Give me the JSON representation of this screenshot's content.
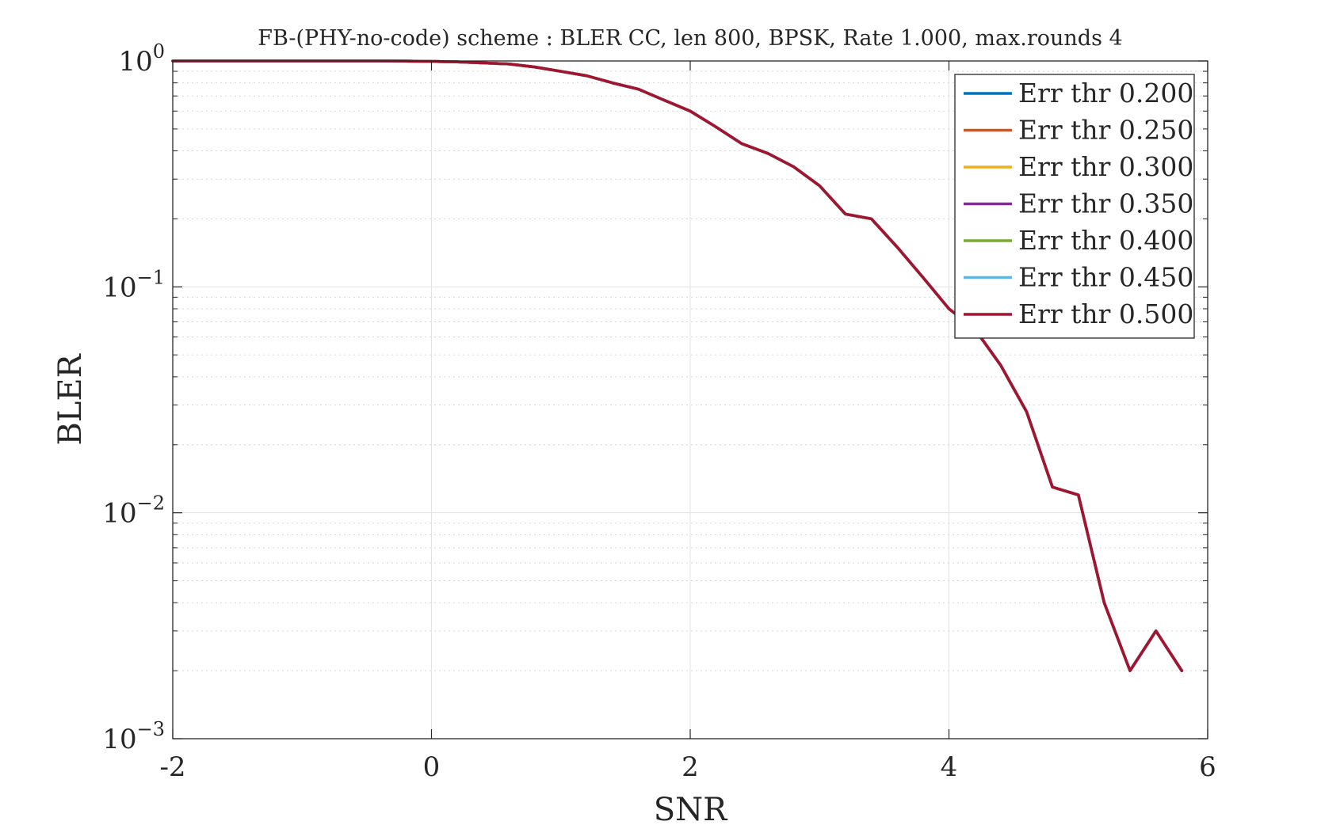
{
  "chart_data": {
    "type": "line",
    "title": "FB-(PHY-no-code) scheme : BLER CC, len 800, BPSK, Rate 1.000, max.rounds 4",
    "xlabel": "SNR",
    "ylabel": "BLER",
    "xlim": [
      -2,
      6
    ],
    "ylim": [
      0.001,
      1
    ],
    "yscale": "log",
    "grid": true,
    "minor_grid_y": true,
    "legend_position": "top-right",
    "x_ticks": [
      "-2",
      "0",
      "2",
      "4",
      "6"
    ],
    "y_ticks": [
      {
        "base": "10",
        "exp": "0"
      },
      {
        "base": "10",
        "exp": "−1"
      },
      {
        "base": "10",
        "exp": "−2"
      },
      {
        "base": "10",
        "exp": "−3"
      }
    ],
    "x": [
      -2,
      -1.8,
      -1.6,
      -1.4,
      -1.2,
      -1,
      -0.8,
      -0.6,
      -0.4,
      -0.2,
      0,
      0.2,
      0.4,
      0.6,
      0.8,
      1,
      1.2,
      1.4,
      1.6,
      1.8,
      2,
      2.2,
      2.4,
      2.6,
      2.8,
      3,
      3.2,
      3.4,
      3.6,
      3.8,
      4,
      4.2,
      4.4,
      4.6,
      4.8,
      5,
      5.2,
      5.4,
      5.6,
      5.8
    ],
    "series": [
      {
        "name": "Err thr 0.200",
        "color": "#0072BD",
        "values": [
          1,
          1,
          1,
          1,
          1,
          1,
          1,
          1,
          1,
          0.998,
          0.995,
          0.99,
          0.98,
          0.97,
          0.94,
          0.9,
          0.86,
          0.8,
          0.75,
          0.67,
          0.6,
          0.51,
          0.43,
          0.39,
          0.34,
          0.28,
          0.21,
          0.2,
          0.15,
          0.11,
          0.08,
          0.065,
          0.045,
          0.028,
          0.013,
          0.012,
          0.004,
          0.002,
          0.003,
          0.002
        ]
      },
      {
        "name": "Err thr 0.250",
        "color": "#D95319",
        "values": [
          1,
          1,
          1,
          1,
          1,
          1,
          1,
          1,
          1,
          0.998,
          0.995,
          0.99,
          0.98,
          0.97,
          0.94,
          0.9,
          0.86,
          0.8,
          0.75,
          0.67,
          0.6,
          0.51,
          0.43,
          0.39,
          0.34,
          0.28,
          0.21,
          0.2,
          0.15,
          0.11,
          0.08,
          0.065,
          0.045,
          0.028,
          0.013,
          0.012,
          0.004,
          0.002,
          0.003,
          0.002
        ]
      },
      {
        "name": "Err thr 0.300",
        "color": "#EDB120",
        "values": [
          1,
          1,
          1,
          1,
          1,
          1,
          1,
          1,
          1,
          0.998,
          0.995,
          0.99,
          0.98,
          0.97,
          0.94,
          0.9,
          0.86,
          0.8,
          0.75,
          0.67,
          0.6,
          0.51,
          0.43,
          0.39,
          0.34,
          0.28,
          0.21,
          0.2,
          0.15,
          0.11,
          0.08,
          0.065,
          0.045,
          0.028,
          0.013,
          0.012,
          0.004,
          0.002,
          0.003,
          0.002
        ]
      },
      {
        "name": "Err thr 0.350",
        "color": "#7E2F8E",
        "values": [
          1,
          1,
          1,
          1,
          1,
          1,
          1,
          1,
          1,
          0.998,
          0.995,
          0.99,
          0.98,
          0.97,
          0.94,
          0.9,
          0.86,
          0.8,
          0.75,
          0.67,
          0.6,
          0.51,
          0.43,
          0.39,
          0.34,
          0.28,
          0.21,
          0.2,
          0.15,
          0.11,
          0.08,
          0.065,
          0.045,
          0.028,
          0.013,
          0.012,
          0.004,
          0.002,
          0.003,
          0.002
        ]
      },
      {
        "name": "Err thr 0.400",
        "color": "#77AC30",
        "values": [
          1,
          1,
          1,
          1,
          1,
          1,
          1,
          1,
          1,
          0.998,
          0.995,
          0.99,
          0.98,
          0.97,
          0.94,
          0.9,
          0.86,
          0.8,
          0.75,
          0.67,
          0.6,
          0.51,
          0.43,
          0.39,
          0.34,
          0.28,
          0.21,
          0.2,
          0.15,
          0.11,
          0.08,
          0.065,
          0.045,
          0.028,
          0.013,
          0.012,
          0.004,
          0.002,
          0.003,
          0.002
        ]
      },
      {
        "name": "Err thr 0.450",
        "color": "#4DBEEE",
        "values": [
          1,
          1,
          1,
          1,
          1,
          1,
          1,
          1,
          1,
          0.998,
          0.995,
          0.99,
          0.98,
          0.97,
          0.94,
          0.9,
          0.86,
          0.8,
          0.75,
          0.67,
          0.6,
          0.51,
          0.43,
          0.39,
          0.34,
          0.28,
          0.21,
          0.2,
          0.15,
          0.11,
          0.08,
          0.065,
          0.045,
          0.028,
          0.013,
          0.012,
          0.004,
          0.002,
          0.003,
          0.002
        ]
      },
      {
        "name": "Err thr 0.500",
        "color": "#A2142F",
        "values": [
          1,
          1,
          1,
          1,
          1,
          1,
          1,
          1,
          1,
          0.998,
          0.995,
          0.99,
          0.98,
          0.97,
          0.94,
          0.9,
          0.86,
          0.8,
          0.75,
          0.67,
          0.6,
          0.51,
          0.43,
          0.39,
          0.34,
          0.28,
          0.21,
          0.2,
          0.15,
          0.11,
          0.08,
          0.065,
          0.045,
          0.028,
          0.013,
          0.012,
          0.004,
          0.002,
          0.003,
          0.002
        ]
      }
    ]
  }
}
